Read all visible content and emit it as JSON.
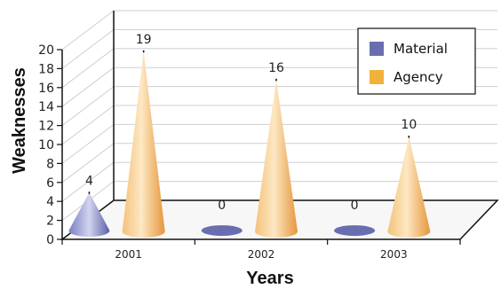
{
  "chart_data": {
    "type": "bar",
    "style": "3d-cone",
    "categories": [
      "2001",
      "2002",
      "2003"
    ],
    "series": [
      {
        "name": "Material",
        "values": [
          4,
          0,
          0
        ],
        "color": "#6a6eb0"
      },
      {
        "name": "Agency",
        "values": [
          19,
          16,
          10
        ],
        "color": "#f0b23a"
      }
    ],
    "data_labels": [
      {
        "category": "2001",
        "text": "4"
      },
      {
        "category": "2001",
        "text": "19"
      },
      {
        "category": "2002",
        "text": "0"
      },
      {
        "category": "2002",
        "text": "16"
      },
      {
        "category": "2003",
        "text": "0"
      },
      {
        "category": "2003",
        "text": "10"
      }
    ],
    "xlabel": "Years",
    "ylabel": "Weaknesses",
    "ylim": [
      0,
      20
    ],
    "yticks": [
      "0",
      "2",
      "4",
      "6",
      "8",
      "10",
      "12",
      "14",
      "16",
      "18",
      "20"
    ],
    "grid": true,
    "legend_position": "top-right"
  }
}
